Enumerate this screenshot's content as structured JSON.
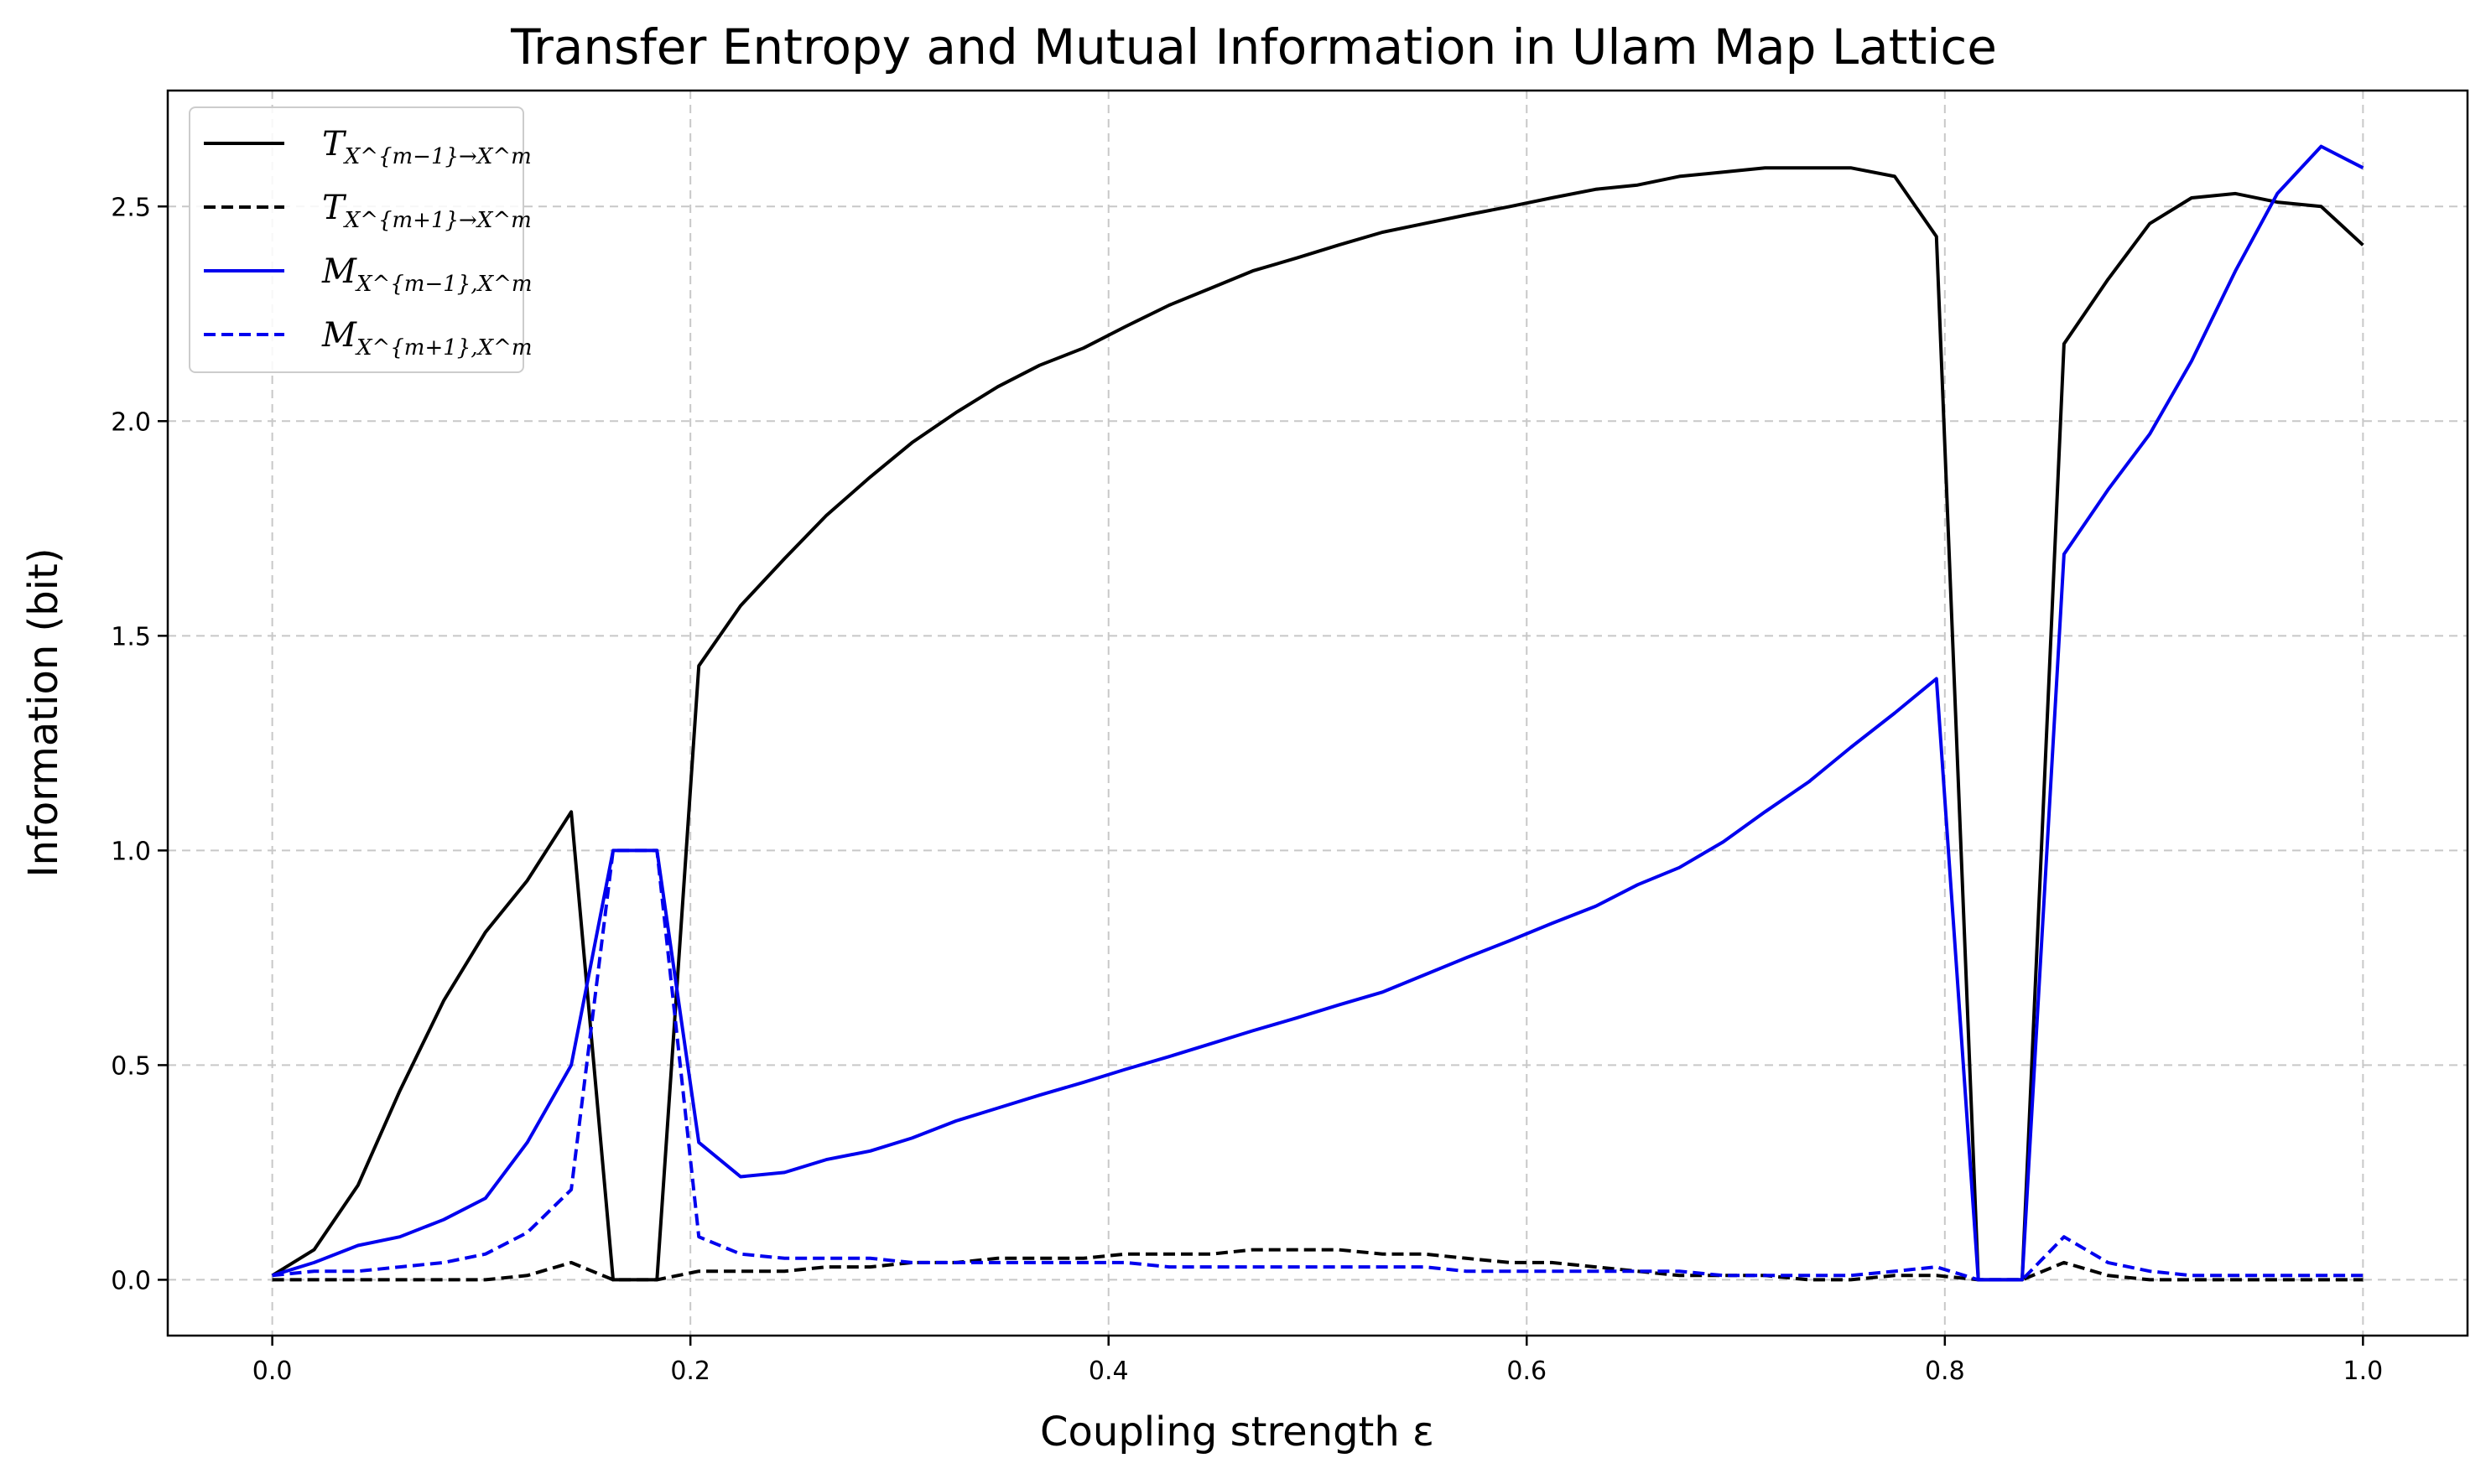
{
  "chart_data": {
    "type": "line",
    "title": "Transfer Entropy and Mutual Information in Ulam Map Lattice",
    "xlabel": "Coupling strength ε",
    "ylabel": "Information (bit)",
    "xlim": [
      -0.05,
      1.05
    ],
    "ylim": [
      -0.13,
      2.77
    ],
    "grid": true,
    "legend_position": "top-left",
    "x_ticks": [
      0.0,
      0.2,
      0.4,
      0.6,
      0.8,
      1.0
    ],
    "x_tick_labels": [
      "0.0",
      "0.2",
      "0.4",
      "0.6",
      "0.8",
      "1.0"
    ],
    "y_ticks": [
      0.0,
      0.5,
      1.0,
      1.5,
      2.0,
      2.5
    ],
    "y_tick_labels": [
      "0.0",
      "0.5",
      "1.0",
      "1.5",
      "2.0",
      "2.5"
    ],
    "x": [
      0.0,
      0.02,
      0.041,
      0.061,
      0.082,
      0.102,
      0.122,
      0.143,
      0.163,
      0.184,
      0.204,
      0.224,
      0.245,
      0.265,
      0.286,
      0.306,
      0.327,
      0.347,
      0.367,
      0.388,
      0.408,
      0.429,
      0.449,
      0.469,
      0.49,
      0.51,
      0.531,
      0.551,
      0.571,
      0.592,
      0.612,
      0.633,
      0.653,
      0.673,
      0.694,
      0.714,
      0.735,
      0.755,
      0.776,
      0.796,
      0.816,
      0.837,
      0.857,
      0.878,
      0.898,
      0.918,
      0.939,
      0.959,
      0.98,
      1.0
    ],
    "series": [
      {
        "name": "T_{X^{m-1}→X^m}",
        "legend_main": "T",
        "legend_sub": "X^{m−1}→X^m",
        "color": "#000000",
        "dash": "solid",
        "values": [
          0.01,
          0.07,
          0.22,
          0.44,
          0.65,
          0.81,
          0.93,
          1.09,
          0.0,
          0.0,
          1.43,
          1.57,
          1.68,
          1.78,
          1.87,
          1.95,
          2.02,
          2.08,
          2.13,
          2.17,
          2.22,
          2.27,
          2.31,
          2.35,
          2.38,
          2.41,
          2.44,
          2.46,
          2.48,
          2.5,
          2.52,
          2.54,
          2.55,
          2.57,
          2.58,
          2.59,
          2.59,
          2.59,
          2.57,
          2.43,
          0.0,
          0.0,
          2.18,
          2.33,
          2.46,
          2.52,
          2.53,
          2.51,
          2.5,
          2.41
        ]
      },
      {
        "name": "T_{X^{m+1}→X^m}",
        "legend_main": "T",
        "legend_sub": "X^{m+1}→X^m",
        "color": "#000000",
        "dash": "dashed",
        "values": [
          0.0,
          0.0,
          0.0,
          0.0,
          0.0,
          0.0,
          0.01,
          0.04,
          0.0,
          0.0,
          0.02,
          0.02,
          0.02,
          0.03,
          0.03,
          0.04,
          0.04,
          0.05,
          0.05,
          0.05,
          0.06,
          0.06,
          0.06,
          0.07,
          0.07,
          0.07,
          0.06,
          0.06,
          0.05,
          0.04,
          0.04,
          0.03,
          0.02,
          0.01,
          0.01,
          0.01,
          0.0,
          0.0,
          0.01,
          0.01,
          0.0,
          0.0,
          0.04,
          0.01,
          0.0,
          0.0,
          0.0,
          0.0,
          0.0,
          0.0
        ]
      },
      {
        "name": "M_{X^{m-1},X^m}",
        "legend_main": "M",
        "legend_sub": "X^{m−1},X^m",
        "color": "#0000ee",
        "dash": "solid",
        "values": [
          0.01,
          0.04,
          0.08,
          0.1,
          0.14,
          0.19,
          0.32,
          0.5,
          1.0,
          1.0,
          0.32,
          0.24,
          0.25,
          0.28,
          0.3,
          0.33,
          0.37,
          0.4,
          0.43,
          0.46,
          0.49,
          0.52,
          0.55,
          0.58,
          0.61,
          0.64,
          0.67,
          0.71,
          0.75,
          0.79,
          0.83,
          0.87,
          0.92,
          0.96,
          1.02,
          1.09,
          1.16,
          1.24,
          1.32,
          1.4,
          0.0,
          0.0,
          1.69,
          1.84,
          1.97,
          2.14,
          2.35,
          2.53,
          2.64,
          2.59
        ]
      },
      {
        "name": "M_{X^{m+1},X^m}",
        "legend_main": "M",
        "legend_sub": "X^{m+1},X^m",
        "color": "#0000ee",
        "dash": "dashed",
        "values": [
          0.01,
          0.02,
          0.02,
          0.03,
          0.04,
          0.06,
          0.11,
          0.21,
          1.0,
          1.0,
          0.1,
          0.06,
          0.05,
          0.05,
          0.05,
          0.04,
          0.04,
          0.04,
          0.04,
          0.04,
          0.04,
          0.03,
          0.03,
          0.03,
          0.03,
          0.03,
          0.03,
          0.03,
          0.02,
          0.02,
          0.02,
          0.02,
          0.02,
          0.02,
          0.01,
          0.01,
          0.01,
          0.01,
          0.02,
          0.03,
          0.0,
          0.0,
          0.1,
          0.04,
          0.02,
          0.01,
          0.01,
          0.01,
          0.01,
          0.01
        ]
      }
    ]
  }
}
